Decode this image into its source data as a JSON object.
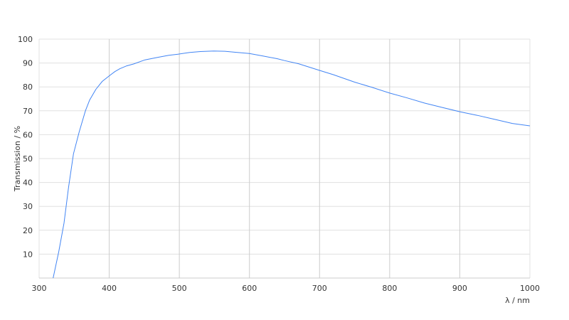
{
  "chart_data": {
    "type": "line",
    "title": "",
    "xlabel": "λ / nm",
    "ylabel": "Transmission / %",
    "xlim": [
      300,
      1000
    ],
    "ylim": [
      0,
      100
    ],
    "x_ticks": [
      "300",
      "400",
      "500",
      "600",
      "700",
      "800",
      "900",
      "1000"
    ],
    "y_ticks": [
      "10",
      "20",
      "30",
      "40",
      "50",
      "60",
      "70",
      "80",
      "90",
      "100"
    ],
    "grid": true,
    "line_color": "#4285f4",
    "series": [
      {
        "x": [
          320,
          328,
          335.5,
          342,
          349,
          357,
          366,
          372,
          381,
          390,
          400.7,
          408,
          415,
          425,
          435,
          451,
          470,
          485,
          498,
          515,
          530,
          549,
          565,
          580,
          600,
          620,
          640,
          650,
          670,
          700,
          720,
          750,
          775,
          800,
          825,
          850,
          875,
          900,
          925,
          950,
          975,
          1000
        ],
        "y": [
          0,
          11,
          23,
          38,
          52,
          61,
          70,
          74.5,
          79,
          82.3,
          84.8,
          86.4,
          87.6,
          88.8,
          89.6,
          91.3,
          92.4,
          93.2,
          93.7,
          94.4,
          94.8,
          95,
          94.9,
          94.5,
          94,
          92.9,
          91.8,
          91,
          89.7,
          86.9,
          85.1,
          82,
          79.8,
          77.4,
          75.4,
          73.2,
          71.4,
          69.6,
          68.1,
          66.4,
          64.7,
          63.7
        ]
      }
    ]
  }
}
